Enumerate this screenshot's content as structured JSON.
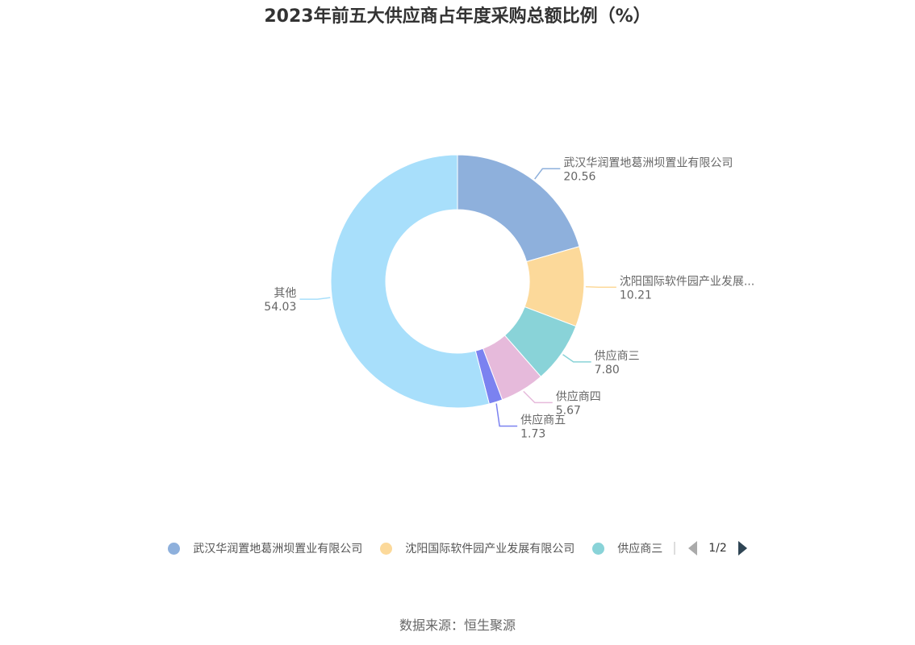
{
  "chart_data": {
    "type": "pie",
    "title": "2023年前五大供应商占年度采购总额比例（%）",
    "slices": [
      {
        "name": "武汉华润置地葛洲坝置业有限公司",
        "label": "武汉华润置地葛洲坝置业有限公司",
        "value": 20.56,
        "value_text": "20.56",
        "color": "#8eb0dc"
      },
      {
        "name": "沈阳国际软件园产业发展有限公司",
        "label": "沈阳国际软件园产业发展...",
        "value": 10.21,
        "value_text": "10.21",
        "color": "#fcd99a"
      },
      {
        "name": "供应商三",
        "label": "供应商三",
        "value": 7.8,
        "value_text": "7.80",
        "color": "#89d3d8"
      },
      {
        "name": "供应商四",
        "label": "供应商四",
        "value": 5.67,
        "value_text": "5.67",
        "color": "#e6badb"
      },
      {
        "name": "供应商五",
        "label": "供应商五",
        "value": 1.73,
        "value_text": "1.73",
        "color": "#7b82f0"
      },
      {
        "name": "其他",
        "label": "其他",
        "value": 54.03,
        "value_text": "54.03",
        "color": "#a8dffb"
      }
    ],
    "legend_placement": "bottom"
  },
  "legend": {
    "items": [
      {
        "label": "武汉华润置地葛洲坝置业有限公司",
        "color": "#8eb0dc"
      },
      {
        "label": "沈阳国际软件园产业发展有限公司",
        "color": "#fcd99a"
      },
      {
        "label": "供应商三",
        "color": "#89d3d8"
      }
    ],
    "page": "1/2"
  },
  "source": "数据来源：恒生聚源"
}
